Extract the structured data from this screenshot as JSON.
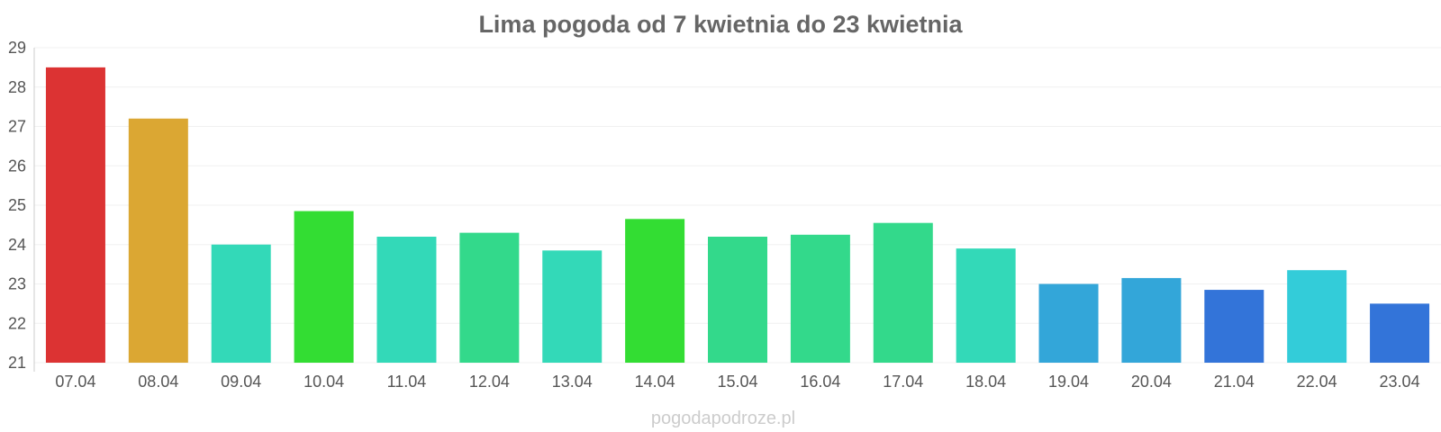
{
  "chart_data": {
    "type": "bar",
    "title": "Lima pogoda od 7 kwietnia do 23 kwietnia",
    "xlabel": "",
    "ylabel": "",
    "categories": [
      "07.04",
      "08.04",
      "09.04",
      "10.04",
      "11.04",
      "12.04",
      "13.04",
      "14.04",
      "15.04",
      "16.04",
      "17.04",
      "18.04",
      "19.04",
      "20.04",
      "21.04",
      "22.04",
      "23.04"
    ],
    "values": [
      28.5,
      27.2,
      24.0,
      24.85,
      24.2,
      24.3,
      23.85,
      24.65,
      24.2,
      24.25,
      24.55,
      23.9,
      23.0,
      23.15,
      22.85,
      23.35,
      22.5
    ],
    "bar_colors": [
      "#dc3333",
      "#dba733",
      "#33d9b8",
      "#33dd33",
      "#33d9b8",
      "#33d98b",
      "#33d9b8",
      "#33dd33",
      "#33d98b",
      "#33d98b",
      "#33d98b",
      "#33d9b8",
      "#33a6d9",
      "#33a6d9",
      "#3374d9",
      "#33ccd9",
      "#3374d9"
    ],
    "yticks": [
      "21",
      "22",
      "23",
      "24",
      "25",
      "26",
      "27",
      "28",
      "29"
    ],
    "ylim": [
      21,
      29
    ],
    "grid": true,
    "legend": "none"
  },
  "watermark": "pogodapodroze.pl"
}
